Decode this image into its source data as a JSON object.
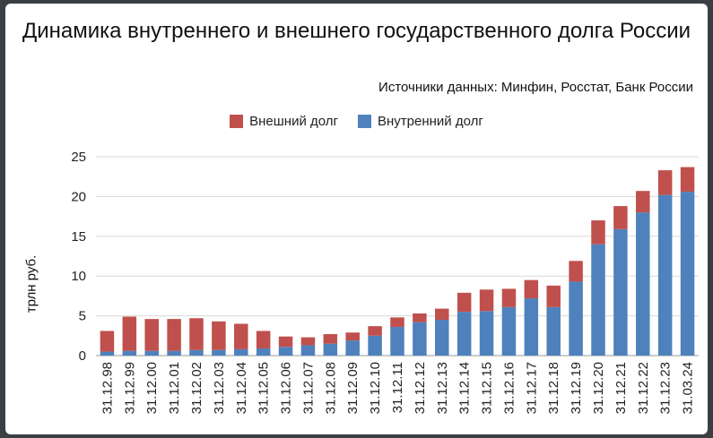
{
  "chart_data": {
    "type": "bar",
    "stacked": true,
    "title": "Динамика внутреннего и внешнего государственного долга России",
    "subtitle": "Источники данных: Минфин, Росстат, Банк России",
    "xlabel": "",
    "ylabel": "трлн руб.",
    "ylim": [
      0,
      25
    ],
    "yticks": [
      0,
      5,
      10,
      15,
      20,
      25
    ],
    "grid": true,
    "legend_position": "top",
    "categories": [
      "31.12.98",
      "31.12.99",
      "31.12.00",
      "31.12.01",
      "31.12.02",
      "31.12.03",
      "31.12.04",
      "31.12.05",
      "31.12.06",
      "31.12.07",
      "31.12.08",
      "31.12.09",
      "31.12.10",
      "31.12.11",
      "31.12.12",
      "31.12.13",
      "31.12.14",
      "31.12.15",
      "31.12.16",
      "31.12.17",
      "31.12.18",
      "31.12.19",
      "31.12.20",
      "31.12.21",
      "31.12.22",
      "31.12.23",
      "31.03.24"
    ],
    "series": [
      {
        "name": "Внутренний долг",
        "color": "#4f81bd",
        "values": [
          0.5,
          0.6,
          0.6,
          0.6,
          0.7,
          0.7,
          0.8,
          0.9,
          1.1,
          1.3,
          1.5,
          1.9,
          2.5,
          3.6,
          4.2,
          4.5,
          5.5,
          5.6,
          6.1,
          7.2,
          6.1,
          9.3,
          14.0,
          15.9,
          18.0,
          20.2,
          20.6
        ]
      },
      {
        "name": "Внешний долг",
        "color": "#c0504d",
        "values": [
          2.6,
          4.3,
          4.0,
          4.0,
          4.0,
          3.6,
          3.2,
          2.2,
          1.3,
          1.0,
          1.2,
          1.0,
          1.2,
          1.2,
          1.1,
          1.4,
          2.4,
          2.7,
          2.3,
          2.3,
          2.7,
          2.6,
          3.0,
          2.9,
          2.7,
          3.1,
          3.1
        ]
      }
    ]
  }
}
